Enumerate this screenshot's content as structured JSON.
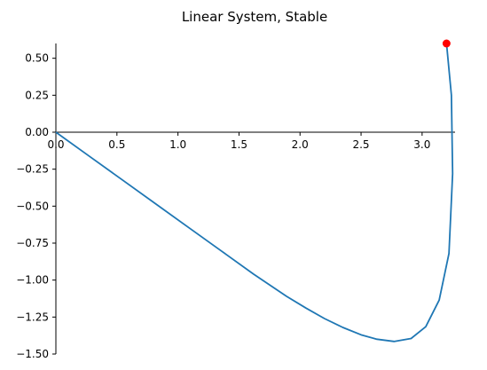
{
  "chart_data": {
    "type": "line",
    "title": "Linear System, Stable",
    "xlabel": "",
    "ylabel": "",
    "xlim": [
      0,
      3.27
    ],
    "ylim": [
      -1.5,
      0.6
    ],
    "xticks": [
      0.0,
      0.5,
      1.0,
      1.5,
      2.0,
      2.5,
      3.0
    ],
    "xtick_labels": [
      "0.0",
      "0.5",
      "1.0",
      "1.5",
      "2.0",
      "2.5",
      "3.0"
    ],
    "yticks": [
      0.5,
      0.25,
      0.0,
      -0.25,
      -0.5,
      -0.75,
      -1.0,
      -1.25,
      -1.5
    ],
    "ytick_labels": [
      "0.50",
      "0.25",
      "0.00",
      "−0.25",
      "−0.50",
      "−0.75",
      "−1.00",
      "−1.25",
      "−1.50"
    ],
    "grid": false,
    "spines": "left and bottom through origin",
    "series": [
      {
        "color": "#1f77b4",
        "x": [
          0.0,
          0.27,
          0.54,
          0.81,
          1.08,
          1.35,
          1.62,
          1.89,
          2.05,
          2.2,
          2.35,
          2.5,
          2.63,
          2.77,
          2.91,
          3.03,
          3.14,
          3.22,
          3.25,
          3.24,
          3.2
        ],
        "y": [
          0.0,
          -0.16,
          -0.32,
          -0.48,
          -0.64,
          -0.8,
          -0.96,
          -1.11,
          -1.19,
          -1.26,
          -1.32,
          -1.37,
          -1.4,
          -1.415,
          -1.395,
          -1.315,
          -1.135,
          -0.82,
          -0.28,
          0.25,
          0.6
        ]
      }
    ],
    "markers": [
      {
        "x": 3.2,
        "y": 0.6,
        "color": "#ff0000"
      }
    ]
  }
}
